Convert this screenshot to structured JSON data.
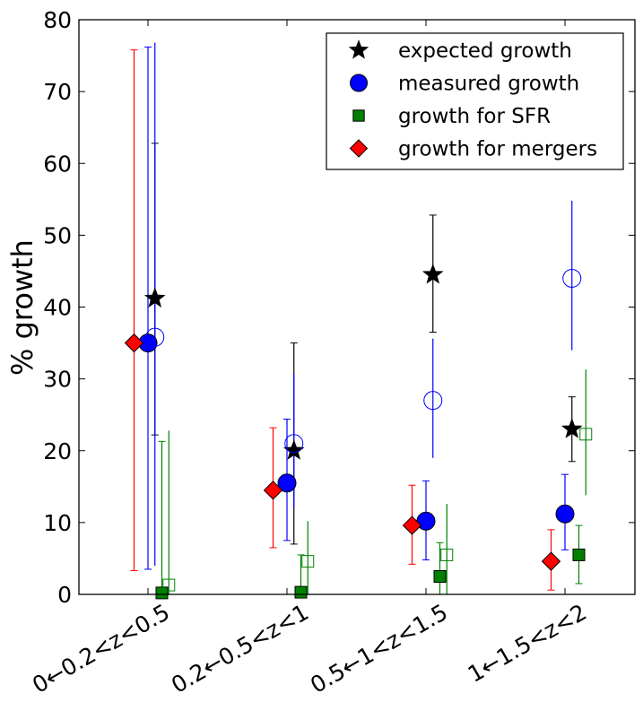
{
  "chart_data": {
    "type": "scatter",
    "ylabel": "% growth",
    "xlabel": "",
    "ylim": [
      0,
      80
    ],
    "yticks": [
      0,
      10,
      20,
      30,
      40,
      50,
      60,
      70,
      80
    ],
    "categories": [
      "0←0.2<z<0.5",
      "0.2←0.5<z<1",
      "0.5←1<z<1.5",
      "1←1.5<z<2"
    ],
    "legend_position": "top-right",
    "legend": [
      {
        "label": "expected growth",
        "marker": "star",
        "color": "#000000"
      },
      {
        "label": "measured growth",
        "marker": "circle",
        "color": "#0000ff"
      },
      {
        "label": "growth for SFR",
        "marker": "square",
        "color": "#008000"
      },
      {
        "label": "growth for mergers",
        "marker": "diamond",
        "color": "#ff0000"
      }
    ],
    "series": [
      {
        "name": "expected growth",
        "marker": "star",
        "color": "#000000",
        "filled": true,
        "offset": 0.05,
        "values": [
          41.2,
          20.0,
          44.5,
          23.0
        ],
        "err_low": [
          22.2,
          7.0,
          36.5,
          18.5
        ],
        "err_high": [
          62.8,
          35.0,
          52.8,
          27.5
        ]
      },
      {
        "name": "measured growth",
        "marker": "circle",
        "color": "#0000ff",
        "filled": true,
        "offset": 0.0,
        "values": [
          35.0,
          15.5,
          10.2,
          11.2
        ],
        "err_low": [
          3.5,
          7.5,
          4.8,
          6.2
        ],
        "err_high": [
          76.2,
          24.4,
          15.8,
          16.7
        ]
      },
      {
        "name": "growth for SFR",
        "marker": "square",
        "color": "#008000",
        "filled": true,
        "offset": 0.1,
        "values": [
          0.2,
          0.3,
          2.5,
          5.5
        ],
        "err_low": [
          0,
          0,
          0,
          1.5
        ],
        "err_high": [
          21.3,
          5.5,
          7.2,
          9.6
        ]
      },
      {
        "name": "growth for mergers",
        "marker": "diamond",
        "color": "#ff0000",
        "filled": true,
        "offset": -0.1,
        "values": [
          35.0,
          14.5,
          9.6,
          4.6
        ],
        "err_low": [
          3.3,
          6.5,
          4.2,
          0.6
        ],
        "err_high": [
          75.8,
          23.2,
          15.2,
          9.0
        ]
      },
      {
        "name": "",
        "marker": "circle",
        "color": "#0000ff",
        "filled": false,
        "offset": 0.05,
        "values": [
          35.8,
          21.0,
          27.0,
          44.0
        ],
        "err_low": [
          4.0,
          12.0,
          19.0,
          34.0
        ],
        "err_high": [
          76.8,
          30.7,
          35.6,
          54.8
        ]
      },
      {
        "name": "",
        "marker": "square",
        "color": "#008000",
        "filled": false,
        "offset": 0.15,
        "values": [
          1.3,
          4.6,
          5.5,
          22.3
        ],
        "err_low": [
          0,
          0,
          0,
          13.8
        ],
        "err_high": [
          22.8,
          10.2,
          12.6,
          31.3
        ]
      }
    ]
  }
}
